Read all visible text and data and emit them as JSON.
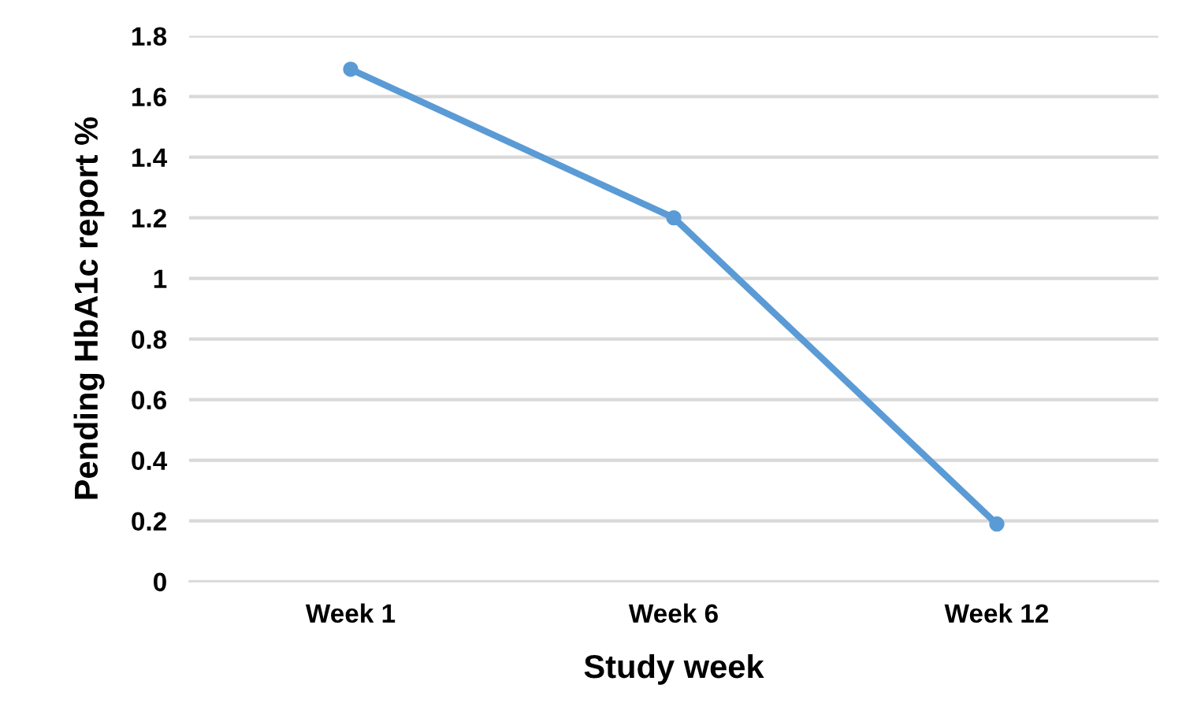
{
  "chart_data": {
    "type": "line",
    "xlabel": "Study week",
    "ylabel": "Pending HbA1c report %",
    "categories": [
      "Week 1",
      "Week 6",
      "Week 12"
    ],
    "series": [
      {
        "color": "#5b9bd5",
        "values": [
          1.69,
          1.2,
          0.19
        ]
      }
    ],
    "ylim": [
      0,
      1.8
    ],
    "yticks": [
      0,
      0.2,
      0.4,
      0.6,
      0.8,
      1,
      1.2,
      1.4,
      1.6,
      1.8
    ],
    "grid": "y",
    "marker": "circle",
    "line_style": "solid"
  }
}
